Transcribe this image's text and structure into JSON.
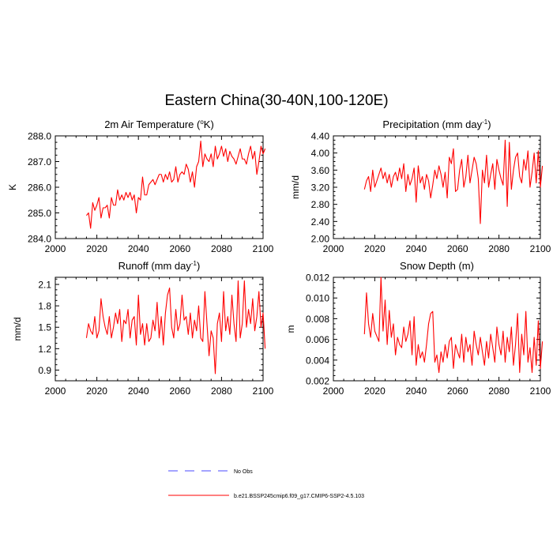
{
  "figure_title": "Eastern China(30-40N,100-120E)",
  "legend": {
    "placement": "bottom-center",
    "entries": [
      {
        "label": "No Obs",
        "color": "#4a4aff",
        "style": "dashed"
      },
      {
        "label": "b.e21.BSSP245cmip6.f09_g17.CMIP6-SSP2-4.5.103",
        "color": "#ff0000",
        "style": "solid"
      }
    ]
  },
  "chart_data": [
    {
      "type": "line",
      "title_main": "2m Air Temperature (",
      "title_sup": "o",
      "title_end": "K)",
      "title": "2m Air Temperature (oK)",
      "ylabel": "K",
      "xlim": [
        2000,
        2100
      ],
      "ylim": [
        284.0,
        288.0
      ],
      "x_ticks": [
        2000,
        2020,
        2040,
        2060,
        2080,
        2100
      ],
      "x_tick_labels": [
        "2000",
        "2020",
        "2040",
        "2060",
        "2080",
        "2100"
      ],
      "y_ticks": [
        284.0,
        285.0,
        286.0,
        287.0,
        288.0
      ],
      "y_tick_labels": [
        "284.0",
        "285.0",
        "286.0",
        "287.0",
        "288.0"
      ],
      "grid": false,
      "series": [
        {
          "name": "b.e21.BSSP245cmip6.f09_g17.CMIP6-SSP2-4.5.103",
          "color": "#ff0000",
          "x_start": 2015,
          "values": [
            284.9,
            285.0,
            284.4,
            285.4,
            285.1,
            285.3,
            285.6,
            284.8,
            285.2,
            285.2,
            285.3,
            284.8,
            285.6,
            285.3,
            285.3,
            285.9,
            285.5,
            285.7,
            285.5,
            285.8,
            285.6,
            285.8,
            285.5,
            285.7,
            285.0,
            285.6,
            285.5,
            286.4,
            285.7,
            285.7,
            286.1,
            286.2,
            286.3,
            286.1,
            286.3,
            286.5,
            286.5,
            286.2,
            286.5,
            286.3,
            286.6,
            286.2,
            286.3,
            286.8,
            286.2,
            286.5,
            286.6,
            286.5,
            286.9,
            286.7,
            286.2,
            286.6,
            286.0,
            286.8,
            287.0,
            287.8,
            286.8,
            287.3,
            287.1,
            287.0,
            287.3,
            286.8,
            287.6,
            287.1,
            287.3,
            287.6,
            287.2,
            287.5,
            287.0,
            287.4,
            287.2,
            287.1,
            286.9,
            287.2,
            287.5,
            287.1,
            287.1,
            286.9,
            287.3,
            287.6,
            287.1,
            287.4,
            286.5,
            287.0,
            287.6,
            287.3,
            287.5
          ]
        }
      ]
    },
    {
      "type": "line",
      "title_main": "Precipitation (mm day",
      "title_sup": "-1",
      "title_end": ")",
      "title": "Precipitation (mm day-1)",
      "ylabel": "mm/d",
      "xlim": [
        2000,
        2100
      ],
      "ylim": [
        2.0,
        4.4
      ],
      "x_ticks": [
        2000,
        2020,
        2040,
        2060,
        2080,
        2100
      ],
      "x_tick_labels": [
        "2000",
        "2020",
        "2040",
        "2060",
        "2080",
        "2100"
      ],
      "y_ticks": [
        2.0,
        2.4,
        2.8,
        3.2,
        3.6,
        4.0,
        4.4
      ],
      "y_tick_labels": [
        "2.00",
        "2.40",
        "2.80",
        "3.20",
        "3.60",
        "4.00",
        "4.40"
      ],
      "grid": false,
      "series": [
        {
          "name": "b.e21.BSSP245cmip6.f09_g17.CMIP6-SSP2-4.5.103",
          "color": "#ff0000",
          "x_start": 2015,
          "values": [
            3.15,
            3.35,
            3.45,
            3.1,
            3.6,
            3.2,
            3.35,
            3.5,
            3.65,
            3.4,
            3.55,
            3.3,
            3.5,
            3.2,
            3.45,
            3.55,
            3.35,
            3.65,
            3.4,
            3.75,
            3.1,
            3.5,
            3.25,
            3.4,
            3.65,
            2.85,
            3.7,
            3.3,
            3.45,
            3.15,
            3.5,
            3.35,
            2.95,
            3.25,
            3.6,
            3.4,
            3.7,
            3.5,
            3.2,
            3.55,
            2.95,
            3.9,
            3.75,
            4.1,
            3.1,
            3.15,
            3.6,
            3.85,
            3.2,
            3.45,
            3.95,
            3.3,
            3.6,
            3.9,
            3.75,
            3.4,
            2.35,
            3.6,
            3.3,
            3.95,
            3.2,
            3.5,
            3.75,
            3.15,
            3.85,
            3.6,
            3.4,
            3.25,
            4.3,
            2.75,
            4.25,
            3.15,
            3.6,
            3.9,
            4.0,
            3.45,
            3.3,
            3.85,
            3.6,
            4.05,
            3.2,
            3.55,
            4.0,
            3.3,
            4.05,
            3.2,
            3.7
          ]
        }
      ]
    },
    {
      "type": "line",
      "title_main": "Runoff (mm day",
      "title_sup": "-1",
      "title_end": ")",
      "title": "Runoff (mm day-1)",
      "ylabel": "mm/d",
      "xlim": [
        2000,
        2100
      ],
      "ylim": [
        0.75,
        2.2
      ],
      "x_ticks": [
        2000,
        2020,
        2040,
        2060,
        2080,
        2100
      ],
      "x_tick_labels": [
        "2000",
        "2020",
        "2040",
        "2060",
        "2080",
        "2100"
      ],
      "y_ticks": [
        0.9,
        1.2,
        1.5,
        1.8,
        2.1
      ],
      "y_tick_labels": [
        "0.9",
        "1.2",
        "1.5",
        "1.8",
        "2.1"
      ],
      "grid": false,
      "series": [
        {
          "name": "b.e21.BSSP245cmip6.f09_g17.CMIP6-SSP2-4.5.103",
          "color": "#ff0000",
          "x_start": 2015,
          "values": [
            1.35,
            1.55,
            1.45,
            1.4,
            1.65,
            1.35,
            1.45,
            1.9,
            1.65,
            1.5,
            1.4,
            1.65,
            1.35,
            1.5,
            1.7,
            1.55,
            1.75,
            1.3,
            1.6,
            1.55,
            1.75,
            1.35,
            1.6,
            1.65,
            1.25,
            1.95,
            1.4,
            1.55,
            1.25,
            1.55,
            1.3,
            1.35,
            1.6,
            1.45,
            1.85,
            1.35,
            1.65,
            1.25,
            1.7,
            1.95,
            2.05,
            1.5,
            1.35,
            1.75,
            1.45,
            1.55,
            1.95,
            1.6,
            1.65,
            1.4,
            1.7,
            1.35,
            1.6,
            1.45,
            1.8,
            1.35,
            1.3,
            2.0,
            1.55,
            1.1,
            1.45,
            1.35,
            0.85,
            1.55,
            1.7,
            1.3,
            2.0,
            1.45,
            1.65,
            1.4,
            1.95,
            1.55,
            1.3,
            2.15,
            1.35,
            1.55,
            2.15,
            1.5,
            1.75,
            1.55,
            1.9,
            1.45,
            1.65,
            2.0,
            1.5,
            1.7,
            1.2
          ]
        }
      ]
    },
    {
      "type": "line",
      "title_main": "Snow Depth (m)",
      "title_sup": "",
      "title_end": "",
      "title": "Snow Depth (m)",
      "ylabel": "m",
      "xlim": [
        2000,
        2100
      ],
      "ylim": [
        0.002,
        0.012
      ],
      "x_ticks": [
        2000,
        2020,
        2040,
        2060,
        2080,
        2100
      ],
      "x_tick_labels": [
        "2000",
        "2020",
        "2040",
        "2060",
        "2080",
        "2100"
      ],
      "y_ticks": [
        0.002,
        0.004,
        0.006,
        0.008,
        0.01,
        0.012
      ],
      "y_tick_labels": [
        "0.002",
        "0.004",
        "0.006",
        "0.008",
        "0.010",
        "0.012"
      ],
      "grid": false,
      "series": [
        {
          "name": "b.e21.BSSP245cmip6.f09_g17.CMIP6-SSP2-4.5.103",
          "color": "#ff0000",
          "x_start": 2015,
          "values": [
            0.0065,
            0.0105,
            0.0075,
            0.0062,
            0.0085,
            0.0068,
            0.0063,
            0.0058,
            0.012,
            0.0068,
            0.0098,
            0.0055,
            0.0088,
            0.0062,
            0.0075,
            0.0045,
            0.0062,
            0.0055,
            0.0052,
            0.0072,
            0.0058,
            0.0065,
            0.0078,
            0.0045,
            0.0082,
            0.0035,
            0.0055,
            0.0042,
            0.0048,
            0.0038,
            0.0055,
            0.0075,
            0.0085,
            0.0087,
            0.0038,
            0.0045,
            0.0028,
            0.0048,
            0.0038,
            0.0055,
            0.0042,
            0.0058,
            0.0062,
            0.0032,
            0.0055,
            0.0048,
            0.0042,
            0.0065,
            0.0038,
            0.0062,
            0.0048,
            0.0055,
            0.0035,
            0.0068,
            0.0055,
            0.0045,
            0.0062,
            0.0048,
            0.0035,
            0.0058,
            0.0042,
            0.0065,
            0.0052,
            0.0038,
            0.0072,
            0.0055,
            0.0045,
            0.0068,
            0.0038,
            0.0062,
            0.0048,
            0.0072,
            0.0035,
            0.0055,
            0.0085,
            0.0028,
            0.0065,
            0.0045,
            0.0087,
            0.0038,
            0.0052,
            0.0028,
            0.0062,
            0.0035,
            0.0078,
            0.0032,
            0.0058
          ]
        }
      ]
    }
  ]
}
